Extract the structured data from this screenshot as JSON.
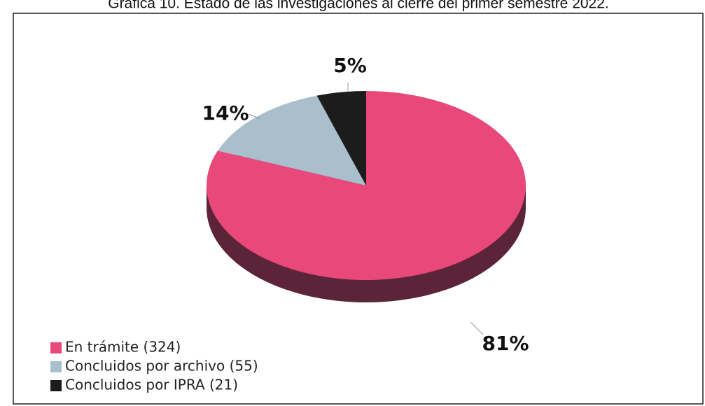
{
  "chart_data": {
    "type": "pie",
    "title": "Gráfica 10. Estado de las investigaciones al cierre del primer semestre 2022.",
    "categories": [
      "En trámite (324)",
      "Concluidos por archivo (55)",
      "Concluidos por IPRA (21)"
    ],
    "values": [
      81,
      14,
      5
    ],
    "value_labels": [
      "81%",
      "14%",
      "5%"
    ],
    "colors": [
      "#e8487a",
      "#a9bfcc",
      "#1c1c1c"
    ],
    "legend": "bottom-left"
  }
}
